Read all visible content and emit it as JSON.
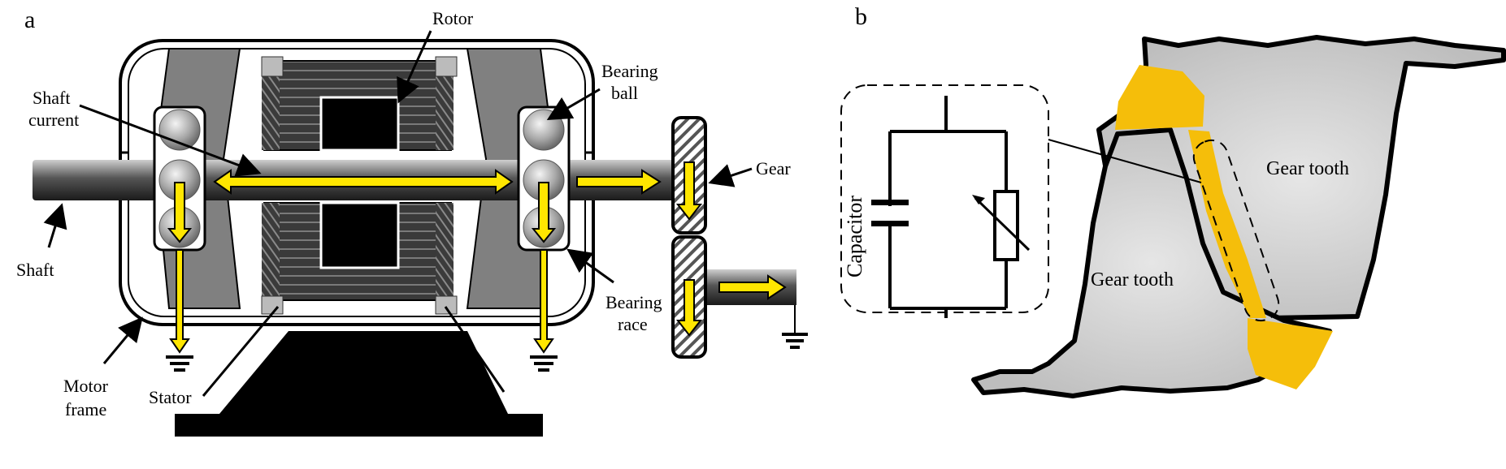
{
  "panel_a": {
    "letter": "a",
    "labels": {
      "rotor": "Rotor",
      "bearing_ball_1": "Bearing",
      "bearing_ball_2": "ball",
      "shaft_current_1": "Shaft",
      "shaft_current_2": "current",
      "gear": "Gear",
      "shaft": "Shaft",
      "bearing_race_1": "Bearing",
      "bearing_race_2": "race",
      "motor_frame_1": "Motor",
      "motor_frame_2": "frame",
      "stator": "Stator"
    }
  },
  "panel_b": {
    "letter": "b",
    "labels": {
      "capacitor": "Capacitor",
      "gear_tooth_upper": "Gear tooth",
      "gear_tooth_lower": "Gear tooth"
    }
  },
  "colors": {
    "current_arrow": "#FFE600",
    "contact_zone": "#F5BE0A",
    "gear_tooth_fill": "#C8C8C8",
    "bearing_housing": "#808080",
    "stator_core": "#3A3A3A"
  }
}
